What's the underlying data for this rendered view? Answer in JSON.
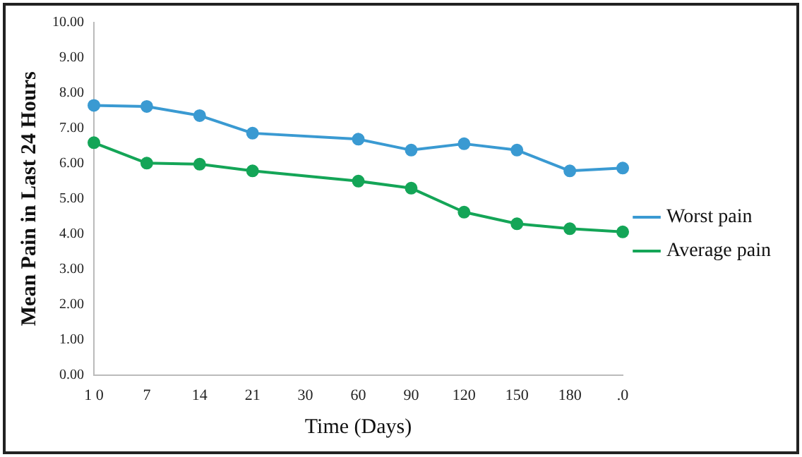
{
  "chart_data": {
    "type": "line",
    "xlabel": "Time (Days)",
    "ylabel": "Mean Pain in Last 24 Hours",
    "categories": [
      "1 0",
      "7",
      "14",
      "21",
      "30",
      "60",
      "90",
      "120",
      "150",
      "180",
      ".0"
    ],
    "series": [
      {
        "name": "Worst pain",
        "color": "#3a9ad2",
        "values": [
          7.65,
          7.62,
          7.36,
          6.86,
          null,
          6.69,
          6.38,
          6.56,
          6.38,
          5.79,
          5.87
        ]
      },
      {
        "name": "Average pain",
        "color": "#14a557",
        "values": [
          6.59,
          6.01,
          5.98,
          5.79,
          null,
          5.5,
          5.3,
          4.62,
          4.29,
          4.15,
          4.06
        ]
      }
    ],
    "ylim": [
      0,
      10
    ],
    "yticks": [
      {
        "value": 0,
        "label": "0.00"
      },
      {
        "value": 1,
        "label": "1.00"
      },
      {
        "value": 2,
        "label": "2.00"
      },
      {
        "value": 3,
        "label": "3.00"
      },
      {
        "value": 4,
        "label": "4.00"
      },
      {
        "value": 5,
        "label": "5.00"
      },
      {
        "value": 6,
        "label": "6.00"
      },
      {
        "value": 7,
        "label": "7.00"
      },
      {
        "value": 8,
        "label": "8.00"
      },
      {
        "value": 9,
        "label": "9.00"
      },
      {
        "value": 10,
        "label": "10.00"
      }
    ],
    "grid": false,
    "legend": "right",
    "marker": "circle",
    "line_style": "solid"
  }
}
